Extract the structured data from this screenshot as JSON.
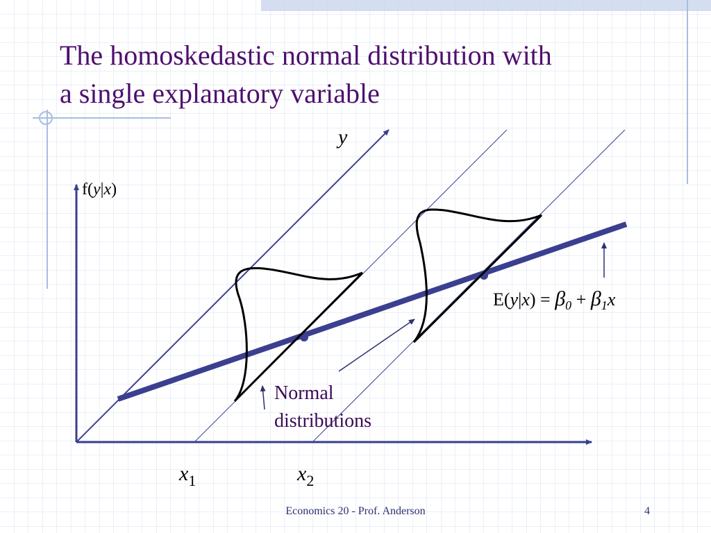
{
  "title": [
    "The homoskedastic normal distribution with",
    "a single explanatory variable"
  ],
  "labels": {
    "density_axis": [
      "f(",
      "y",
      "|",
      "x",
      ")"
    ],
    "y_axis": "y",
    "equation": [
      "E(",
      "y",
      "|",
      "x",
      ") = ",
      "β",
      "0",
      " + ",
      "β",
      "1",
      "x"
    ],
    "x1": [
      "x",
      "1"
    ],
    "x2": [
      "x",
      "2"
    ],
    "note": [
      "Normal",
      "distributions"
    ]
  },
  "footer": "Economics 20 - Prof. Anderson",
  "page_number": "4"
}
